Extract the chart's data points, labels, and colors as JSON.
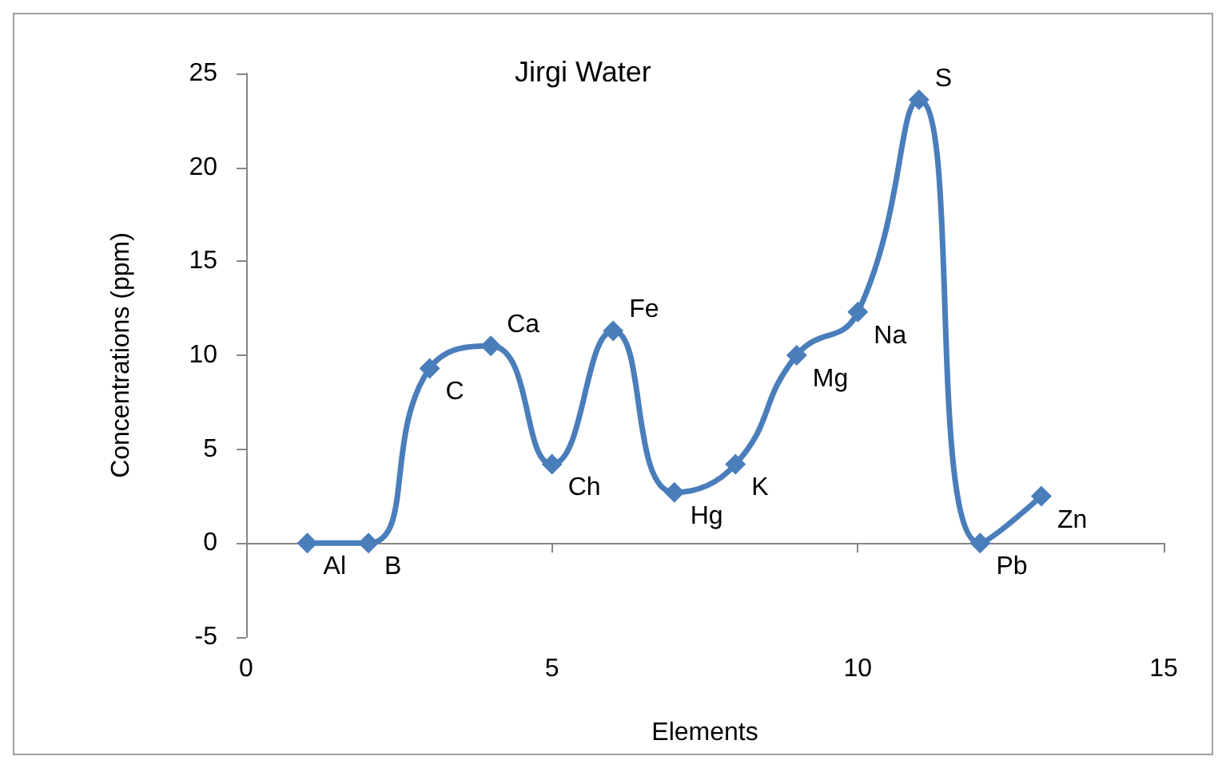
{
  "chart_data": {
    "type": "line",
    "title": "Jirgi Water",
    "xlabel": "Elements",
    "ylabel": "Concentrations (ppm)",
    "x": [
      1,
      2,
      3,
      4,
      5,
      6,
      7,
      8,
      9,
      10,
      11,
      12,
      13
    ],
    "series": [
      {
        "color": "#4a7ebb",
        "values": [
          0,
          0,
          9.3,
          10.5,
          4.2,
          11.3,
          2.7,
          4.2,
          10,
          12.3,
          23.6,
          0,
          2.5
        ]
      }
    ],
    "xlim": [
      0,
      15
    ],
    "xticks": [
      0,
      5,
      10,
      15
    ],
    "ylim": [
      -5,
      25
    ],
    "yticks": [
      -5,
      0,
      5,
      10,
      15,
      20,
      25
    ],
    "marker": "diamond",
    "line_style": "solid",
    "annotations": [
      {
        "text": "Al",
        "x": 1,
        "y": 0
      },
      {
        "text": "B",
        "x": 2,
        "y": 0
      },
      {
        "text": "C",
        "x": 3,
        "y": 9.3
      },
      {
        "text": "Ca",
        "x": 4,
        "y": 10.5
      },
      {
        "text": "Ch",
        "x": 5,
        "y": 4.2
      },
      {
        "text": "Fe",
        "x": 6,
        "y": 11.3
      },
      {
        "text": "Hg",
        "x": 7,
        "y": 2.7
      },
      {
        "text": "K",
        "x": 8,
        "y": 4.2
      },
      {
        "text": "Mg",
        "x": 9,
        "y": 10
      },
      {
        "text": "Na",
        "x": 10,
        "y": 12.3
      },
      {
        "text": "S",
        "x": 11,
        "y": 23.6
      },
      {
        "text": "Pb",
        "x": 12,
        "y": 0
      },
      {
        "text": "Zn",
        "x": 13,
        "y": 2.5
      }
    ]
  }
}
